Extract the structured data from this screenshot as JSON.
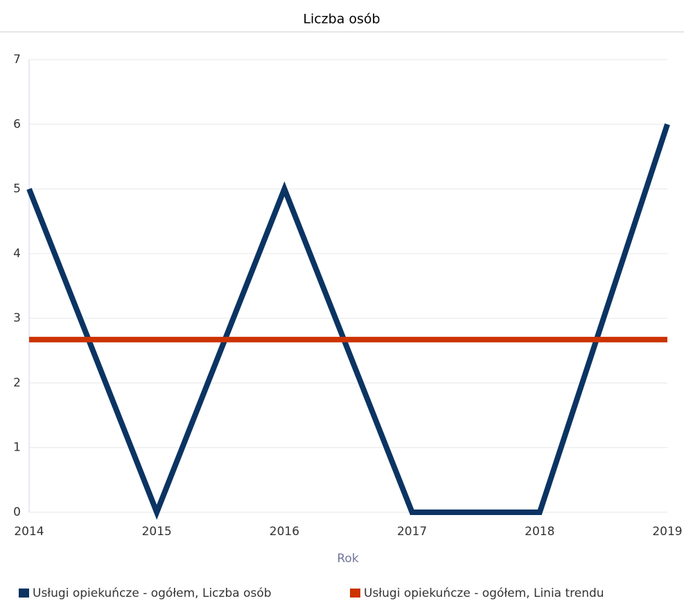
{
  "chart_data": {
    "type": "line",
    "title": "Liczba osób",
    "x_label": "Rok",
    "categories": [
      "2014",
      "2015",
      "2016",
      "2017",
      "2018",
      "2019"
    ],
    "series": [
      {
        "name": "Usługi opiekuńcze - ogółem, Liczba osób",
        "color": "#0b3463",
        "values": [
          5,
          0,
          5,
          0,
          0,
          6
        ]
      },
      {
        "name": "Usługi opiekuńcze - ogółem, Linia trendu",
        "color": "#cc3300",
        "values": [
          2.67,
          2.67,
          2.67,
          2.67,
          2.67,
          2.67
        ]
      }
    ],
    "ylim": [
      0,
      7
    ],
    "yticks": [
      0,
      1,
      2,
      3,
      4,
      5,
      6,
      7
    ],
    "grid": true
  }
}
